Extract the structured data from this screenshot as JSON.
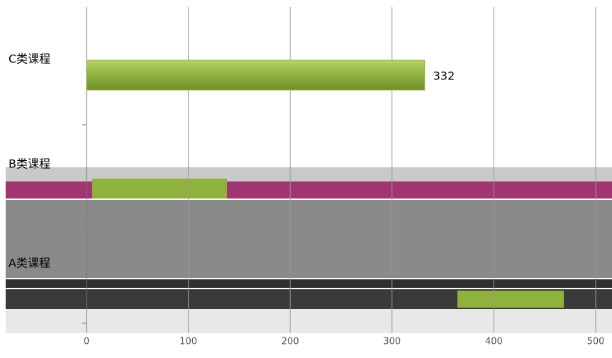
{
  "chart_data": {
    "type": "bar",
    "orientation": "horizontal",
    "categories": [
      "C类课程",
      "B类课程",
      "A类课程"
    ],
    "values": [
      332,
      null,
      null
    ],
    "color": "#8fb23e",
    "xlim": [
      0,
      500
    ],
    "xticks": [
      0,
      100,
      200,
      300,
      400,
      500
    ],
    "grid": true
  }
}
